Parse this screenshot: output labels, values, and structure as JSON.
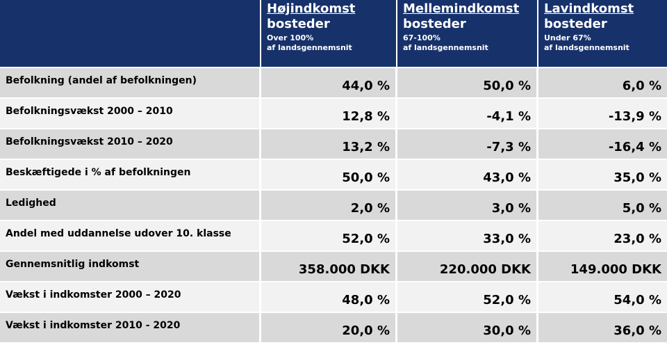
{
  "header": {
    "columns": [
      {
        "title": "Højindkomst",
        "subtitle": "bosteder",
        "note1": "Over 100%",
        "note2": "af landsgennemsnit"
      },
      {
        "title": "Mellemindkomst",
        "subtitle": "bosteder",
        "note1": "67-100%",
        "note2": "af landsgennemsnit"
      },
      {
        "title": "Lavindkomst",
        "subtitle": "bosteder",
        "note1": "Under 67%",
        "note2": "af landsgennemsnit"
      }
    ]
  },
  "rows": [
    {
      "label": "Befolkning (andel af befolkningen)",
      "values": [
        "44,0 %",
        "50,0 %",
        "6,0 %"
      ]
    },
    {
      "label": "Befolkningsvækst 2000 – 2010",
      "values": [
        "12,8 %",
        "-4,1 %",
        "-13,9 %"
      ]
    },
    {
      "label": "Befolkningsvækst 2010 – 2020",
      "values": [
        "13,2 %",
        "-7,3 %",
        "-16,4 %"
      ]
    },
    {
      "label": "Beskæftigede i % af befolkningen",
      "values": [
        "50,0 %",
        "43,0 %",
        "35,0 %"
      ]
    },
    {
      "label": "Ledighed",
      "values": [
        "2,0 %",
        "3,0 %",
        "5,0 %"
      ]
    },
    {
      "label": "Andel med uddannelse udover 10. klasse",
      "values": [
        "52,0 %",
        "33,0 %",
        "23,0 %"
      ]
    },
    {
      "label": "Gennemsnitlig indkomst",
      "values": [
        "358.000 DKK",
        "220.000 DKK",
        "149.000 DKK"
      ]
    },
    {
      "label": "Vækst i indkomster 2000 – 2020",
      "values": [
        "48,0 %",
        "52,0 %",
        "54,0 %"
      ]
    },
    {
      "label": "Vækst i indkomster 2010 - 2020",
      "values": [
        "20,0 %",
        "30,0 %",
        "36,0 %"
      ]
    }
  ]
}
